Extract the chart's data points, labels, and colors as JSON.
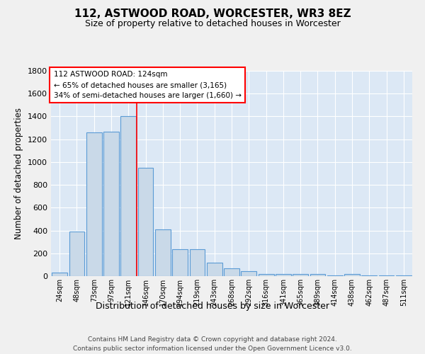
{
  "title1": "112, ASTWOOD ROAD, WORCESTER, WR3 8EZ",
  "title2": "Size of property relative to detached houses in Worcester",
  "xlabel": "Distribution of detached houses by size in Worcester",
  "ylabel": "Number of detached properties",
  "categories": [
    "24sqm",
    "48sqm",
    "73sqm",
    "97sqm",
    "121sqm",
    "146sqm",
    "170sqm",
    "194sqm",
    "219sqm",
    "243sqm",
    "268sqm",
    "292sqm",
    "316sqm",
    "341sqm",
    "365sqm",
    "389sqm",
    "414sqm",
    "438sqm",
    "462sqm",
    "487sqm",
    "511sqm"
  ],
  "values": [
    30,
    390,
    1260,
    1265,
    1400,
    950,
    410,
    235,
    235,
    115,
    70,
    45,
    18,
    18,
    18,
    18,
    5,
    18,
    5,
    5,
    5
  ],
  "bar_color": "#c9d9e8",
  "bar_edge_color": "#5b9bd5",
  "bg_color": "#dce8f5",
  "grid_color": "#ffffff",
  "red_line_x": 4.5,
  "annotation_title": "112 ASTWOOD ROAD: 124sqm",
  "annotation_line1": "← 65% of detached houses are smaller (3,165)",
  "annotation_line2": "34% of semi-detached houses are larger (1,660) →",
  "footer1": "Contains HM Land Registry data © Crown copyright and database right 2024.",
  "footer2": "Contains public sector information licensed under the Open Government Licence v3.0.",
  "ylim": [
    0,
    1800
  ],
  "yticks": [
    0,
    200,
    400,
    600,
    800,
    1000,
    1200,
    1400,
    1600,
    1800
  ],
  "fig_bg": "#f0f0f0"
}
